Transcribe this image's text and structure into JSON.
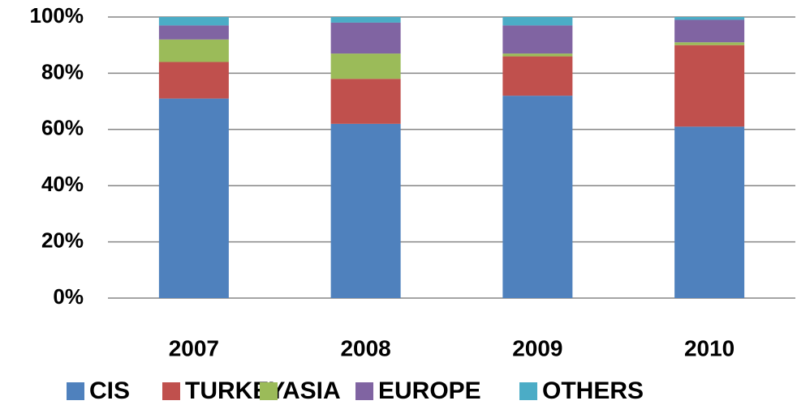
{
  "chart_data": {
    "type": "stacked_bar",
    "categories": [
      "2007",
      "2008",
      "2009",
      "2010"
    ],
    "series": [
      {
        "name": "CIS",
        "color": "#4f81bd",
        "values": [
          71,
          62,
          72,
          61
        ]
      },
      {
        "name": "TURKEY",
        "color": "#c0504d",
        "values": [
          13,
          16,
          14,
          29
        ]
      },
      {
        "name": "ASIA",
        "color": "#9bbb59",
        "values": [
          8,
          9,
          1,
          1
        ]
      },
      {
        "name": "EUROPE",
        "color": "#8064a2",
        "values": [
          5,
          11,
          10,
          8
        ]
      },
      {
        "name": "OTHERS",
        "color": "#4bacc6",
        "values": [
          3,
          2,
          3,
          1
        ]
      }
    ],
    "ylim": [
      0,
      100
    ],
    "yticks": [
      {
        "value": 0,
        "label": "0%"
      },
      {
        "value": 20,
        "label": "20%"
      },
      {
        "value": 40,
        "label": "40%"
      },
      {
        "value": 60,
        "label": "60%"
      },
      {
        "value": 80,
        "label": "80%"
      },
      {
        "value": 100,
        "label": "100%"
      }
    ],
    "grid": true
  }
}
